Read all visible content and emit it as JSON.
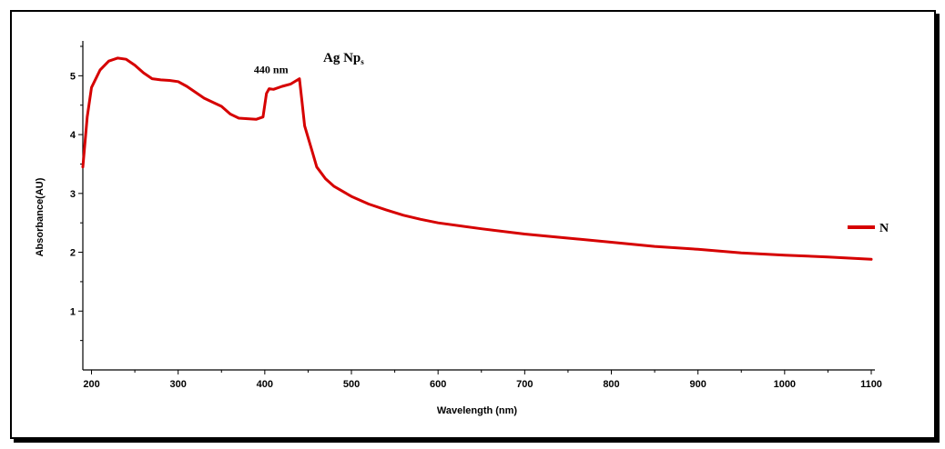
{
  "chart_data": {
    "type": "line",
    "title": "",
    "xlabel": "Wavelength (nm)",
    "ylabel": "Absorbance(AU)",
    "xlim": [
      190,
      1100
    ],
    "ylim": [
      0,
      5.5
    ],
    "x_ticks": [
      200,
      300,
      400,
      500,
      600,
      700,
      800,
      900,
      1000,
      1100
    ],
    "y_ticks": [
      1,
      2,
      3,
      4,
      5
    ],
    "grid": false,
    "legend": {
      "position": "right",
      "entries": [
        "N"
      ]
    },
    "annotations": [
      {
        "text": "Ag Np",
        "subscript": "s"
      },
      {
        "text": "440 nm",
        "x": 440,
        "y": 4.95
      }
    ],
    "series": [
      {
        "name": "N",
        "color": "#d60000",
        "x": [
          190,
          195,
          200,
          210,
          220,
          230,
          240,
          250,
          260,
          270,
          280,
          290,
          300,
          310,
          320,
          330,
          340,
          350,
          360,
          370,
          380,
          390,
          398,
          402,
          405,
          410,
          420,
          430,
          440,
          443,
          446,
          450,
          455,
          460,
          470,
          480,
          500,
          520,
          540,
          560,
          580,
          600,
          650,
          700,
          750,
          800,
          850,
          900,
          950,
          1000,
          1050,
          1100
        ],
        "y": [
          3.45,
          4.3,
          4.8,
          5.1,
          5.25,
          5.3,
          5.28,
          5.18,
          5.05,
          4.95,
          4.93,
          4.92,
          4.9,
          4.82,
          4.72,
          4.62,
          4.55,
          4.48,
          4.35,
          4.28,
          4.27,
          4.26,
          4.3,
          4.7,
          4.78,
          4.77,
          4.82,
          4.86,
          4.95,
          4.55,
          4.15,
          3.95,
          3.7,
          3.45,
          3.25,
          3.12,
          2.95,
          2.82,
          2.72,
          2.63,
          2.56,
          2.5,
          2.4,
          2.31,
          2.24,
          2.17,
          2.1,
          2.05,
          1.99,
          1.95,
          1.92,
          1.88
        ]
      }
    ]
  }
}
